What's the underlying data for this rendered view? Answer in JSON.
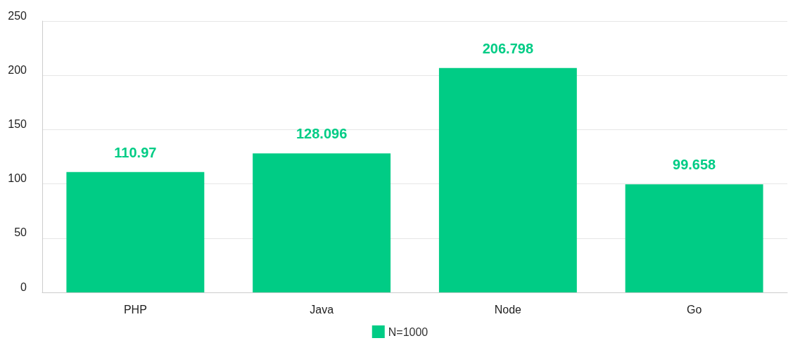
{
  "chart_data": {
    "type": "bar",
    "categories": [
      "PHP",
      "Java",
      "Node",
      "Go"
    ],
    "series": [
      {
        "name": "N=1000",
        "color": "#00cc85",
        "values": [
          110.97,
          128.096,
          206.798,
          99.658
        ]
      }
    ],
    "ylim": [
      0,
      250
    ],
    "yticks": [
      0,
      50,
      100,
      150,
      200,
      250
    ],
    "grid": "y",
    "legend": "bottom",
    "data_labels": true
  }
}
